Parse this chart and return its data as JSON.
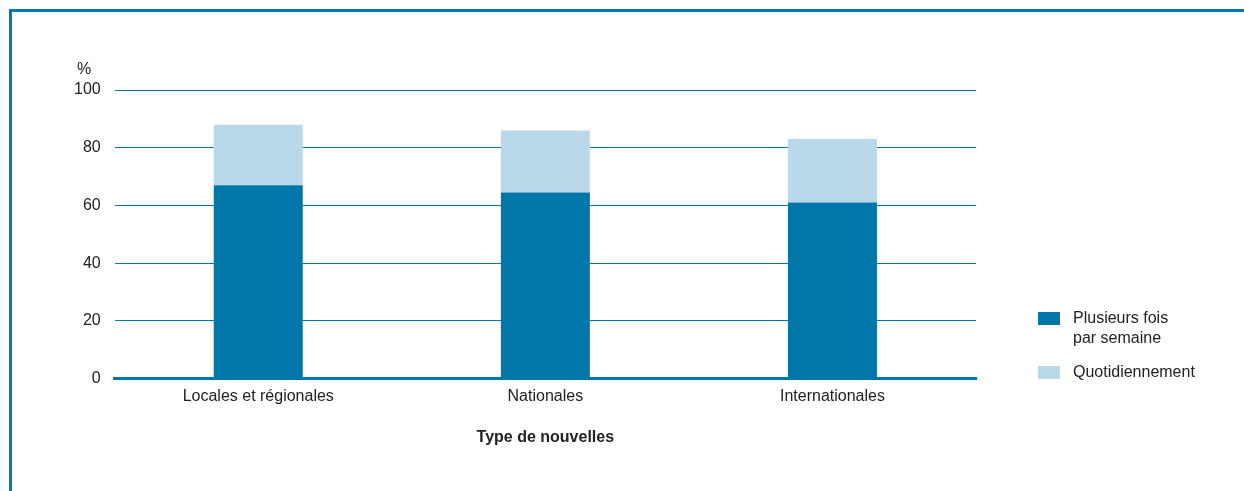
{
  "chart_data": {
    "type": "bar",
    "stacked": true,
    "xlabel": "Type de nouvelles",
    "ylabel": "%",
    "categories": [
      "Locales et régionales",
      "Nationales",
      "Internationales"
    ],
    "series": [
      {
        "name": "Plusieurs fois par semaine",
        "color": "#0077a8",
        "values": [
          67,
          64.5,
          61
        ]
      },
      {
        "name": "Quotidiennement",
        "color": "#b9d9ea",
        "values": [
          21,
          21.5,
          22
        ]
      }
    ],
    "ylim": [
      0,
      100
    ],
    "yticks": [
      0,
      20,
      40,
      60,
      80,
      100
    ],
    "grid": "y",
    "legend": "right"
  }
}
